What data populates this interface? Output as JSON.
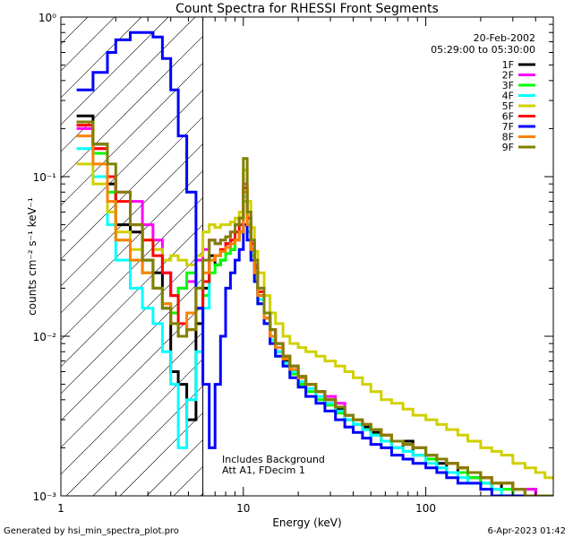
{
  "chart_data": {
    "type": "line",
    "title": "Count Spectra for RHESSI Front Segments",
    "xlabel": "Energy (keV)",
    "ylabel": "counts cm⁻² s⁻¹ keV⁻¹",
    "xscale": "log",
    "yscale": "log",
    "xlim": [
      1,
      500
    ],
    "ylim": [
      0.001,
      1.0
    ],
    "x_ticklabels": [
      "1",
      "10",
      "100"
    ],
    "y_ticklabels": [
      "10⁰",
      "10⁻¹",
      "10⁻²",
      "10⁻³"
    ],
    "legend_position": "top-right",
    "date": "20-Feb-2002",
    "time_range": "05:29:00 to 05:30:00",
    "annotation_lines": [
      "Includes Background",
      "Att A1, FDecim 1"
    ],
    "attenuator_cutoff_kev": 6.0,
    "energies_kev": [
      1.22,
      1.5,
      1.8,
      2.0,
      2.4,
      2.8,
      3.2,
      3.6,
      4.0,
      4.4,
      4.9,
      5.5,
      6.0,
      6.5,
      7.0,
      7.5,
      8.0,
      8.5,
      9.0,
      9.5,
      10.0,
      10.5,
      11.0,
      11.5,
      12.0,
      13.0,
      14.0,
      15.0,
      16.5,
      18.0,
      20.0,
      22.0,
      25.0,
      28.0,
      32.0,
      36.0,
      40.0,
      45.0,
      50.0,
      57.0,
      65.0,
      75.0,
      85.0,
      100.0,
      115.0,
      130.0,
      150.0,
      170.0,
      200.0,
      230.0,
      260.0,
      300.0,
      350.0,
      400.0,
      450.0
    ],
    "series": [
      {
        "name": "1F",
        "color": "#000000",
        "values": [
          0.24,
          0.16,
          0.09,
          0.05,
          0.045,
          0.03,
          0.025,
          0.015,
          0.006,
          0.005,
          0.003,
          0.012,
          0.02,
          0.032,
          0.028,
          0.03,
          0.038,
          0.035,
          0.04,
          0.045,
          0.08,
          0.05,
          0.035,
          0.025,
          0.018,
          0.013,
          0.01,
          0.008,
          0.007,
          0.006,
          0.005,
          0.005,
          0.0045,
          0.004,
          0.0035,
          0.003,
          0.0028,
          0.0027,
          0.0025,
          0.0022,
          0.002,
          0.0022,
          0.0018,
          0.0017,
          0.0016,
          0.0014,
          0.0015,
          0.0013,
          0.0012,
          0.0011,
          0.0012,
          0.001,
          0.0011,
          0.001,
          0.001
        ]
      },
      {
        "name": "2F",
        "color": "#ff00ff",
        "values": [
          0.2,
          0.15,
          0.1,
          0.08,
          0.07,
          0.05,
          0.04,
          0.025,
          0.018,
          0.02,
          0.022,
          0.03,
          0.035,
          0.04,
          0.038,
          0.04,
          0.042,
          0.045,
          0.05,
          0.055,
          0.09,
          0.06,
          0.04,
          0.028,
          0.02,
          0.014,
          0.011,
          0.009,
          0.0075,
          0.0065,
          0.0055,
          0.005,
          0.0045,
          0.0042,
          0.0038,
          0.0032,
          0.003,
          0.0028,
          0.0026,
          0.0024,
          0.0022,
          0.0021,
          0.002,
          0.0018,
          0.0017,
          0.0016,
          0.0015,
          0.0014,
          0.0013,
          0.0012,
          0.0012,
          0.0011,
          0.0011,
          0.001,
          0.001
        ]
      },
      {
        "name": "3F",
        "color": "#00ff00",
        "values": [
          0.22,
          0.14,
          0.08,
          0.04,
          0.03,
          0.025,
          0.02,
          0.016,
          0.014,
          0.02,
          0.025,
          0.02,
          0.018,
          0.025,
          0.028,
          0.03,
          0.033,
          0.035,
          0.04,
          0.045,
          0.07,
          0.045,
          0.032,
          0.022,
          0.016,
          0.012,
          0.009,
          0.0075,
          0.0065,
          0.0058,
          0.005,
          0.0045,
          0.004,
          0.0037,
          0.0033,
          0.003,
          0.0028,
          0.0026,
          0.0024,
          0.0022,
          0.002,
          0.0019,
          0.0018,
          0.0017,
          0.0015,
          0.0014,
          0.0014,
          0.0013,
          0.0012,
          0.0011,
          0.0011,
          0.001,
          0.001,
          0.001,
          0.001
        ]
      },
      {
        "name": "4F",
        "color": "#00ffff",
        "values": [
          0.15,
          0.1,
          0.05,
          0.03,
          0.02,
          0.015,
          0.012,
          0.008,
          0.005,
          0.002,
          0.004,
          0.008,
          0.015,
          0.03,
          0.032,
          0.034,
          0.036,
          0.04,
          0.045,
          0.05,
          0.075,
          0.05,
          0.034,
          0.024,
          0.017,
          0.012,
          0.0095,
          0.008,
          0.0068,
          0.006,
          0.0052,
          0.0047,
          0.0042,
          0.0038,
          0.0034,
          0.003,
          0.0028,
          0.0026,
          0.0024,
          0.0022,
          0.002,
          0.0019,
          0.0018,
          0.0016,
          0.0015,
          0.0014,
          0.0013,
          0.0012,
          0.0012,
          0.0011,
          0.001,
          0.001,
          0.001,
          0.001,
          0.001
        ]
      },
      {
        "name": "5F",
        "color": "#d0d000",
        "values": [
          0.12,
          0.09,
          0.06,
          0.045,
          0.035,
          0.04,
          0.035,
          0.03,
          0.032,
          0.03,
          0.028,
          0.032,
          0.045,
          0.05,
          0.048,
          0.05,
          0.05,
          0.052,
          0.055,
          0.06,
          0.11,
          0.07,
          0.048,
          0.034,
          0.025,
          0.018,
          0.014,
          0.012,
          0.01,
          0.009,
          0.0085,
          0.008,
          0.0075,
          0.007,
          0.0065,
          0.006,
          0.0055,
          0.005,
          0.0045,
          0.004,
          0.0038,
          0.0035,
          0.0032,
          0.003,
          0.0028,
          0.0026,
          0.0024,
          0.0022,
          0.002,
          0.0019,
          0.0018,
          0.0016,
          0.0015,
          0.0014,
          0.0013
        ]
      },
      {
        "name": "6F",
        "color": "#ff0000",
        "values": [
          0.21,
          0.15,
          0.1,
          0.07,
          0.05,
          0.04,
          0.032,
          0.025,
          0.018,
          0.012,
          0.011,
          0.015,
          0.022,
          0.03,
          0.032,
          0.035,
          0.038,
          0.04,
          0.045,
          0.05,
          0.085,
          0.055,
          0.038,
          0.027,
          0.019,
          0.014,
          0.011,
          0.009,
          0.0075,
          0.0065,
          0.0056,
          0.005,
          0.0045,
          0.004,
          0.0036,
          0.0032,
          0.003,
          0.0028,
          0.0026,
          0.0024,
          0.0022,
          0.0021,
          0.002,
          0.0018,
          0.0017,
          0.0016,
          0.0015,
          0.0014,
          0.0013,
          0.0012,
          0.0012,
          0.0011,
          0.001,
          0.001,
          0.001
        ]
      },
      {
        "name": "7F",
        "color": "#0000ff",
        "values": [
          0.35,
          0.45,
          0.6,
          0.72,
          0.8,
          0.8,
          0.75,
          0.55,
          0.35,
          0.18,
          0.08,
          0.015,
          0.005,
          0.002,
          0.005,
          0.01,
          0.02,
          0.025,
          0.03,
          0.035,
          0.05,
          0.04,
          0.03,
          0.022,
          0.016,
          0.012,
          0.009,
          0.0075,
          0.0065,
          0.0055,
          0.0048,
          0.0042,
          0.0038,
          0.0034,
          0.003,
          0.0027,
          0.0025,
          0.0023,
          0.0021,
          0.002,
          0.0018,
          0.0017,
          0.0016,
          0.0015,
          0.0014,
          0.0013,
          0.0012,
          0.0012,
          0.0011,
          0.001,
          0.001,
          0.001,
          0.001,
          0.001,
          0.001
        ]
      },
      {
        "name": "8F",
        "color": "#ff8000",
        "values": [
          0.18,
          0.12,
          0.07,
          0.04,
          0.03,
          0.025,
          0.02,
          0.016,
          0.012,
          0.01,
          0.014,
          0.02,
          0.025,
          0.03,
          0.032,
          0.034,
          0.036,
          0.038,
          0.04,
          0.045,
          0.08,
          0.05,
          0.035,
          0.025,
          0.018,
          0.013,
          0.01,
          0.0085,
          0.0072,
          0.0062,
          0.0055,
          0.005,
          0.0045,
          0.004,
          0.0036,
          0.0032,
          0.003,
          0.0028,
          0.0026,
          0.0024,
          0.0022,
          0.0021,
          0.002,
          0.0018,
          0.0017,
          0.0016,
          0.0015,
          0.0014,
          0.0013,
          0.0012,
          0.0012,
          0.0011,
          0.001,
          0.001,
          0.001
        ]
      },
      {
        "name": "9F",
        "color": "#808000",
        "values": [
          0.22,
          0.16,
          0.12,
          0.08,
          0.05,
          0.03,
          0.02,
          0.015,
          0.012,
          0.01,
          0.011,
          0.02,
          0.03,
          0.04,
          0.038,
          0.04,
          0.042,
          0.045,
          0.05,
          0.055,
          0.13,
          0.06,
          0.04,
          0.03,
          0.02,
          0.014,
          0.011,
          0.009,
          0.0075,
          0.0065,
          0.0056,
          0.005,
          0.0045,
          0.004,
          0.0036,
          0.0032,
          0.003,
          0.0028,
          0.0026,
          0.0024,
          0.0022,
          0.0021,
          0.002,
          0.0018,
          0.0017,
          0.0016,
          0.0015,
          0.0014,
          0.0013,
          0.0012,
          0.0012,
          0.0011,
          0.001,
          0.001,
          0.001
        ]
      }
    ]
  },
  "footer": {
    "generated_by": "Generated by hsi_min_spectra_plot.pro",
    "timestamp": "6-Apr-2023 01:42"
  }
}
